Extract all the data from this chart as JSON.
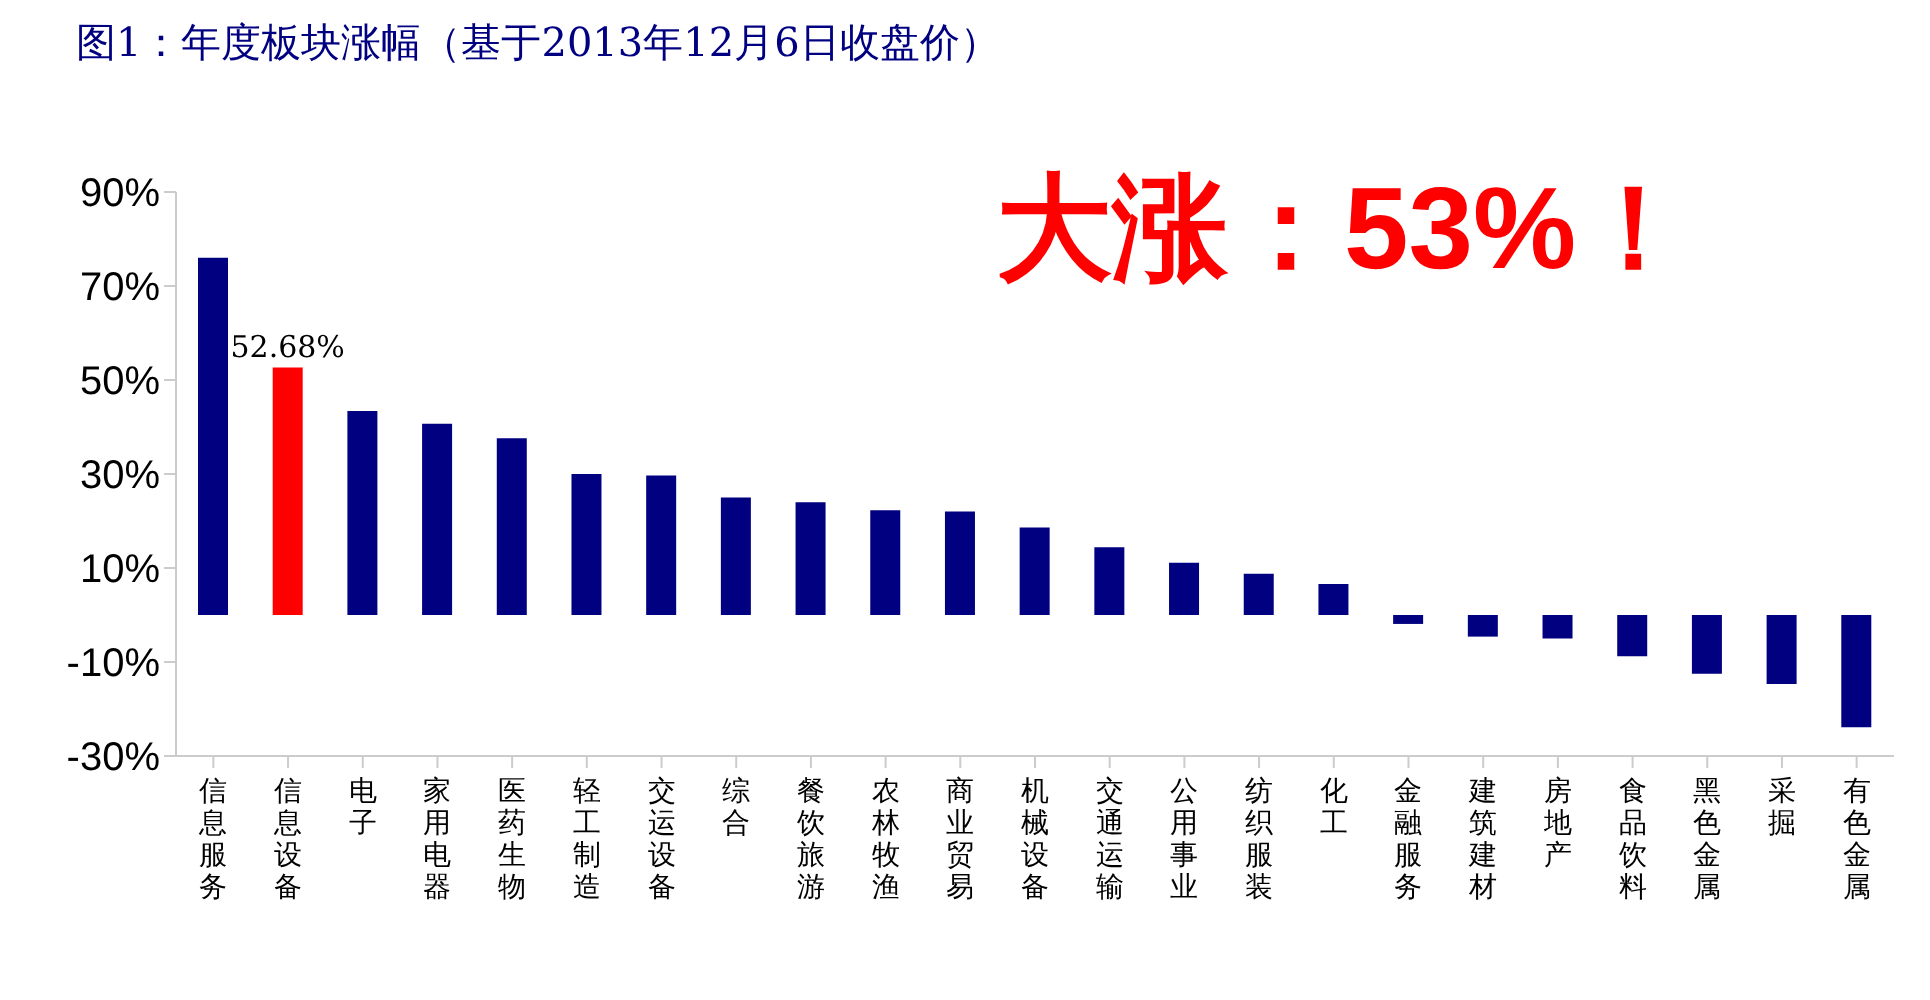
{
  "chart_data": {
    "type": "bar",
    "title": "图1：年度板块涨幅（基于2013年12月6日收盘价）",
    "categories": [
      "信息服务",
      "信息设备",
      "电子",
      "家用电器",
      "医药生物",
      "轻工制造",
      "交运设备",
      "综合",
      "餐饮旅游",
      "农林牧渔",
      "商业贸易",
      "机械设备",
      "交通运输",
      "公用事业",
      "纺织服装",
      "化工",
      "金融服务",
      "建筑建材",
      "房地产",
      "食品饮料",
      "黑色金属",
      "采掘",
      "有色金属"
    ],
    "values": [
      76,
      52.68,
      43.4,
      40.7,
      37.6,
      30,
      29.7,
      25,
      24,
      22.3,
      22,
      18.6,
      14.4,
      11.1,
      8.8,
      6.6,
      -1.9,
      -4.6,
      -5,
      -8.8,
      -12.5,
      -14.7,
      -23.9
    ],
    "colors": [
      "#000080",
      "#ff0000",
      "#000080",
      "#000080",
      "#000080",
      "#000080",
      "#000080",
      "#000080",
      "#000080",
      "#000080",
      "#000080",
      "#000080",
      "#000080",
      "#000080",
      "#000080",
      "#000080",
      "#000080",
      "#000080",
      "#000080",
      "#000080",
      "#000080",
      "#000080",
      "#000080"
    ],
    "value_labels": [
      null,
      "52.68%",
      null,
      null,
      null,
      null,
      null,
      null,
      null,
      null,
      null,
      null,
      null,
      null,
      null,
      null,
      null,
      null,
      null,
      null,
      null,
      null,
      null
    ],
    "ylim": [
      -30,
      90
    ],
    "yticks": [
      {
        "value": -30,
        "label": "-30%"
      },
      {
        "value": -10,
        "label": "-10%"
      },
      {
        "value": 10,
        "label": "10%"
      },
      {
        "value": 30,
        "label": "30%"
      },
      {
        "value": 50,
        "label": "50%"
      },
      {
        "value": 70,
        "label": "70%"
      },
      {
        "value": 90,
        "label": "90%"
      }
    ],
    "annotations": [
      "大涨：53%！"
    ],
    "grid": false,
    "legend": false
  }
}
